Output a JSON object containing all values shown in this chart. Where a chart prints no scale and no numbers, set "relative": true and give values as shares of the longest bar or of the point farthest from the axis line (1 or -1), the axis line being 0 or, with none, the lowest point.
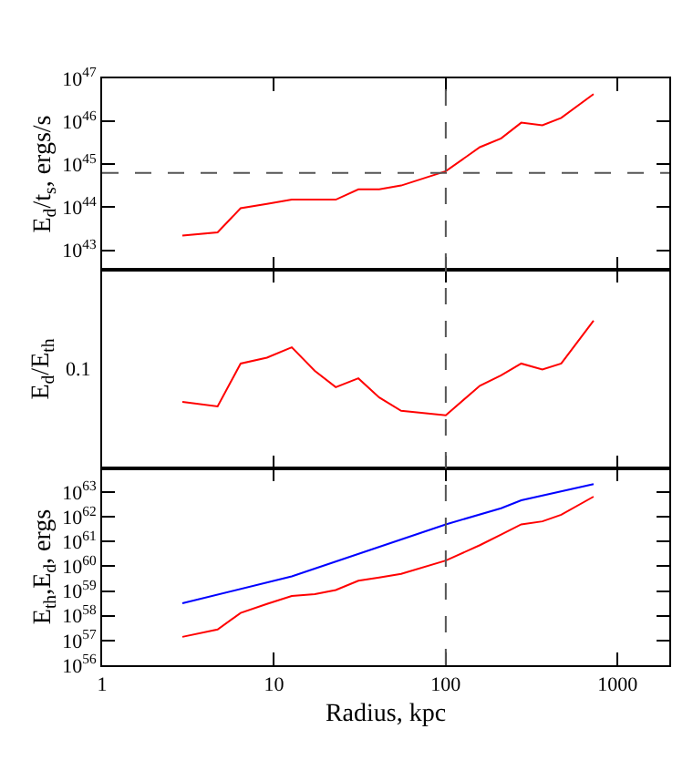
{
  "chart_data": [
    {
      "type": "line",
      "ylabel": "E$_{d}$/t$_{s}$, ergs/s",
      "log": "xy",
      "tick_labels": "y",
      "legend": false,
      "xlim": [
        1,
        2000
      ],
      "xticks": [
        1,
        10,
        100,
        1000
      ],
      "ylim": [
        3.5e+42,
        1e+47
      ],
      "yticks": [
        {
          "value": 1e+43,
          "label": "10$^{43}$"
        },
        {
          "value": 1e+44,
          "label": "10$^{44}$"
        },
        {
          "value": 1e+45,
          "label": "10$^{45}$"
        },
        {
          "value": 1e+46,
          "label": "10$^{46}$"
        },
        {
          "value": 1e+47,
          "label": "10$^{47}$"
        }
      ],
      "x": [
        2.93,
        4.7,
        6.4,
        9.1,
        12.7,
        17.3,
        22.9,
        31,
        41,
        55,
        100,
        158,
        210,
        275,
        365,
        470,
        725
      ],
      "series": [
        {
          "color": "#ff0000",
          "values": [
            2.2e+43,
            2.6e+43,
            9.5e+43,
            1.2e+44,
            1.5e+44,
            1.5e+44,
            1.5e+44,
            2.6e+44,
            2.6e+44,
            3.2e+44,
            6.9e+44,
            2.5e+45,
            4e+45,
            9.3e+45,
            8.1e+45,
            1.2e+46,
            4.3e+46
          ]
        }
      ],
      "ref_lines": [
        {
          "axis": "x",
          "value": 100,
          "color": "#555555",
          "line_style": "dashed"
        },
        {
          "axis": "y",
          "value": 6.3e+44,
          "color": "#555555",
          "line_style": "dashed"
        }
      ]
    },
    {
      "type": "line",
      "ylabel": "E$_{d}$/E$_{th}$",
      "log": "x",
      "relative": true,
      "tick_labels": false,
      "legend": false,
      "xlim": [
        1,
        2000
      ],
      "xticks": [
        1,
        10,
        100,
        1000
      ],
      "annotations": [
        "0.1"
      ],
      "x": [
        2.93,
        4.7,
        6.4,
        9.1,
        12.7,
        17.3,
        22.9,
        31,
        41,
        55,
        100,
        158,
        210,
        275,
        365,
        470,
        725
      ],
      "series": [
        {
          "color": "#ff0000",
          "values": [
            0.45,
            0.42,
            0.71,
            0.75,
            0.82,
            0.66,
            0.55,
            0.61,
            0.48,
            0.39,
            0.36,
            0.56,
            0.63,
            0.71,
            0.67,
            0.71,
            1
          ]
        }
      ],
      "ref_lines": [
        {
          "axis": "x",
          "value": 100,
          "color": "#555555",
          "line_style": "dashed"
        }
      ]
    },
    {
      "type": "line",
      "ylabel": "E$_{th}$,E$_{d}$, ergs",
      "xlabel": "Radius, kpc",
      "log": "xy",
      "legend": false,
      "xlim": [
        1,
        2000
      ],
      "xticks": [
        1,
        10,
        100,
        1000
      ],
      "ylim": [
        1e+56,
        9e+63
      ],
      "yticks": [
        {
          "value": 1e+56,
          "label": "10$^{56}$"
        },
        {
          "value": 1e+57,
          "label": "10$^{57}$"
        },
        {
          "value": 1e+58,
          "label": "10$^{58}$"
        },
        {
          "value": 1e+59,
          "label": "10$^{59}$"
        },
        {
          "value": 1e+60,
          "label": "10$^{60}$"
        },
        {
          "value": 1e+61,
          "label": "10$^{61}$"
        },
        {
          "value": 1e+62,
          "label": "10$^{62}$"
        },
        {
          "value": 1e+63,
          "label": "10$^{63}$"
        }
      ],
      "x": [
        2.93,
        4.7,
        6.4,
        9.1,
        12.7,
        17.3,
        22.9,
        31,
        41,
        55,
        100,
        158,
        210,
        275,
        365,
        470,
        725
      ],
      "series": [
        {
          "color": "#0000ff",
          "x": [
            2.93,
            12.7,
            100,
            210,
            275,
            725
          ],
          "values": [
            3.2e+58,
            3.9e+59,
            4.9e+61,
            2.2e+62,
            4.6e+62,
            2.1e+63
          ]
        },
        {
          "color": "#ff0000",
          "values": [
            1.4e+57,
            2.8e+57,
            1.3e+58,
            3e+58,
            6.3e+58,
            7.4e+58,
            1.1e+59,
            2.6e+59,
            3.5e+59,
            4.9e+59,
            1.7e+60,
            7.1e+60,
            1.9e+61,
            4.9e+61,
            6.5e+61,
            1.2e+62,
            6.5e+62
          ]
        }
      ],
      "ref_lines": [
        {
          "axis": "x",
          "value": 100,
          "color": "#555555",
          "line_style": "dashed"
        }
      ]
    }
  ]
}
